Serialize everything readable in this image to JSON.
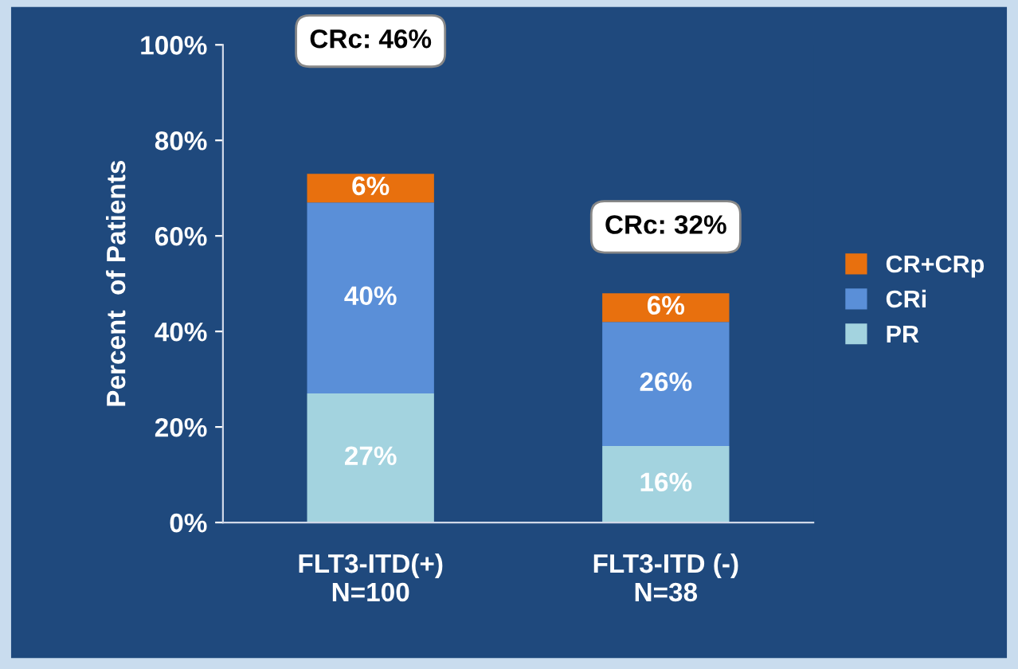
{
  "chart_data": {
    "type": "bar",
    "stacked": true,
    "ylabel": "Percent  of Patients",
    "categories": [
      "FLT3-ITD(+)\nN=100",
      "FLT3-ITD (-)\nN=38"
    ],
    "series": [
      {
        "name": "PR",
        "color": "#a3d3df",
        "values": [
          27,
          16
        ],
        "value_labels": [
          "27%",
          "16%"
        ]
      },
      {
        "name": "CRi",
        "color": "#5a8fd8",
        "values": [
          40,
          26
        ],
        "value_labels": [
          "40%",
          "26%"
        ]
      },
      {
        "name": "CR+CRp",
        "color": "#e8700e",
        "values": [
          6,
          6
        ],
        "value_labels": [
          "6%",
          "6%"
        ]
      }
    ],
    "ylim": [
      0,
      100
    ],
    "yticks": [
      {
        "value": 0,
        "label": "0%"
      },
      {
        "value": 20,
        "label": "20%"
      },
      {
        "value": 40,
        "label": "40%"
      },
      {
        "value": 60,
        "label": "60%"
      },
      {
        "value": 80,
        "label": "80%"
      },
      {
        "value": 100,
        "label": "100%"
      }
    ],
    "legend": "right",
    "grid": false,
    "annotations": [
      "CRc: 46%",
      "CRc: 32%"
    ]
  }
}
